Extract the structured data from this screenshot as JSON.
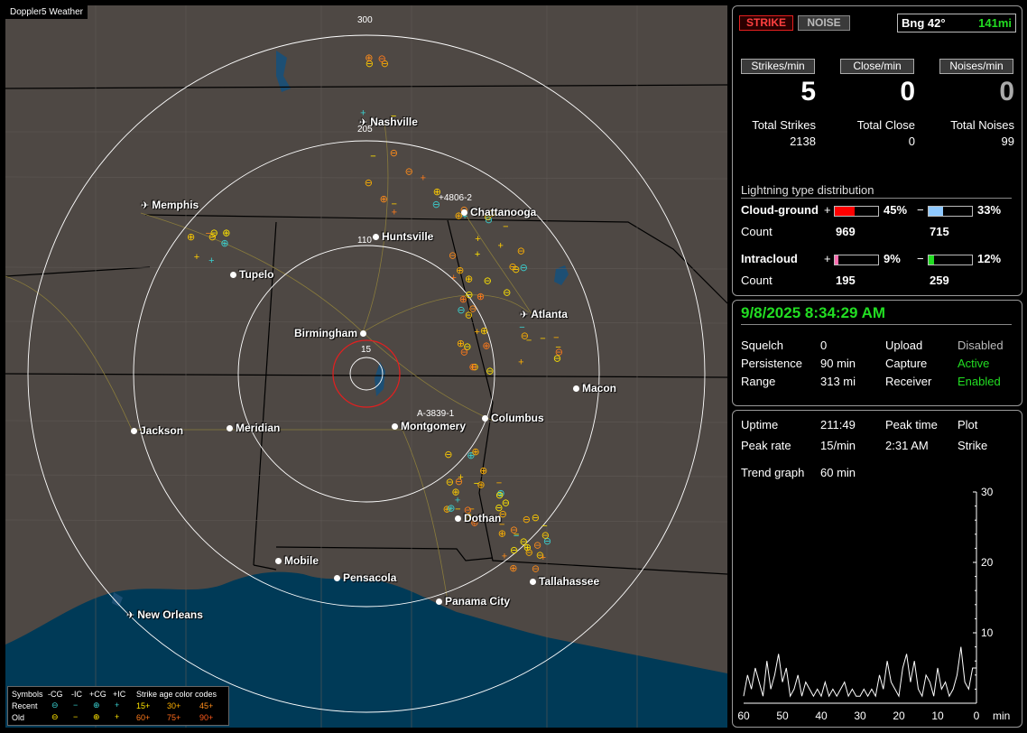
{
  "map": {
    "title": "Doppler5 Weather",
    "ring_labels": [
      "300",
      "205",
      "110",
      "15"
    ],
    "strike_ids": [
      "4806-2",
      "A-3839-1"
    ],
    "cities": [
      {
        "name": "Nashville",
        "kind": "airport"
      },
      {
        "name": "Memphis",
        "kind": "airport"
      },
      {
        "name": "Chattanooga",
        "kind": "city"
      },
      {
        "name": "Huntsville",
        "kind": "city"
      },
      {
        "name": "Tupelo",
        "kind": "city"
      },
      {
        "name": "Atlanta",
        "kind": "airport"
      },
      {
        "name": "Birmingham",
        "kind": "city"
      },
      {
        "name": "Macon",
        "kind": "city"
      },
      {
        "name": "Jackson",
        "kind": "airport"
      },
      {
        "name": "Meridian",
        "kind": "city"
      },
      {
        "name": "Montgomery",
        "kind": "city"
      },
      {
        "name": "Columbus",
        "kind": "city"
      },
      {
        "name": "Dothan",
        "kind": "city"
      },
      {
        "name": "Mobile",
        "kind": "city"
      },
      {
        "name": "Pensacola",
        "kind": "city"
      },
      {
        "name": "Tallahassee",
        "kind": "city"
      },
      {
        "name": "Panama City",
        "kind": "city"
      },
      {
        "name": "New Orleans",
        "kind": "airport"
      }
    ],
    "legend": {
      "symbols_label": "Symbols",
      "headers": [
        "-CG",
        "-IC",
        "+CG",
        "+IC"
      ],
      "age_title": "Strike age color codes",
      "recent_label": "Recent",
      "old_label": "Old",
      "recent_ages": [
        "15+",
        "30+",
        "45+"
      ],
      "old_ages": [
        "60+",
        "75+",
        "90+"
      ]
    }
  },
  "header": {
    "strike_button": "STRIKE",
    "noise_button": "NOISE",
    "bearing": "Bng 42°",
    "distance": "141mi"
  },
  "rates": {
    "strikes_min_label": "Strikes/min",
    "close_min_label": "Close/min",
    "noises_min_label": "Noises/min",
    "strikes_min": "5",
    "close_min": "0",
    "noises_min": "0"
  },
  "totals": {
    "total_strikes_label": "Total Strikes",
    "total_close_label": "Total Close",
    "total_noises_label": "Total Noises",
    "total_strikes": "2138",
    "total_close": "0",
    "total_noises": "99"
  },
  "distribution": {
    "title": "Lightning type distribution",
    "cg_label": "Cloud-ground",
    "ic_label": "Intracloud",
    "count_label": "Count",
    "plus": "+",
    "minus": "−",
    "cg_pos_pct": "45%",
    "cg_neg_pct": "33%",
    "cg_pos_count": "969",
    "cg_neg_count": "715",
    "ic_pos_pct": "9%",
    "ic_neg_pct": "12%",
    "ic_pos_count": "195",
    "ic_neg_count": "259",
    "cg_pos_fill": 0.45,
    "cg_neg_fill": 0.33,
    "ic_pos_fill": 0.09,
    "ic_neg_fill": 0.12,
    "colors": {
      "cg_pos": "#ff0000",
      "cg_neg": "#8fc9ff",
      "ic_pos": "#ff6fb0",
      "ic_neg": "#22dd22"
    }
  },
  "status": {
    "datetime": "9/8/2025 8:34:29 AM",
    "squelch_label": "Squelch",
    "squelch": "0",
    "persistence_label": "Persistence",
    "persistence": "90 min",
    "range_label": "Range",
    "range": "313 mi",
    "upload_label": "Upload",
    "upload": "Disabled",
    "capture_label": "Capture",
    "capture": "Active",
    "receiver_label": "Receiver",
    "receiver": "Enabled"
  },
  "stats": {
    "uptime_label": "Uptime",
    "uptime": "211:49",
    "peak_time_label": "Peak time",
    "peak_time": "2:31 AM",
    "plot_label": "Plot",
    "plot": "Strike",
    "peak_rate_label": "Peak rate",
    "peak_rate": "15/min",
    "trend_label": "Trend graph",
    "trend": "60 min"
  },
  "chart_data": {
    "type": "line",
    "x": [
      60,
      59,
      58,
      57,
      56,
      55,
      54,
      53,
      52,
      51,
      50,
      49,
      48,
      47,
      46,
      45,
      44,
      43,
      42,
      41,
      40,
      39,
      38,
      37,
      36,
      35,
      34,
      33,
      32,
      31,
      30,
      29,
      28,
      27,
      26,
      25,
      24,
      23,
      22,
      21,
      20,
      19,
      18,
      17,
      16,
      15,
      14,
      13,
      12,
      11,
      10,
      9,
      8,
      7,
      6,
      5,
      4,
      3,
      2,
      1,
      0
    ],
    "series": [
      {
        "values": [
          1,
          4,
          2,
          5,
          3,
          1,
          6,
          2,
          4,
          7,
          3,
          5,
          1,
          2,
          4,
          1,
          3,
          2,
          1,
          2,
          1,
          3,
          1,
          2,
          1,
          2,
          3,
          1,
          2,
          1,
          1,
          2,
          1,
          2,
          1,
          4,
          2,
          6,
          3,
          2,
          1,
          5,
          7,
          3,
          6,
          2,
          1,
          4,
          3,
          1,
          5,
          2,
          3,
          1,
          2,
          4,
          8,
          3,
          2,
          5,
          5
        ]
      }
    ],
    "xlabel": "min",
    "x_ticks": [
      "60",
      "50",
      "40",
      "30",
      "20",
      "10",
      "0"
    ],
    "y_ticks": [
      "30",
      "20",
      "10"
    ],
    "ylim": [
      0,
      30
    ],
    "xlim": [
      60,
      0
    ]
  }
}
